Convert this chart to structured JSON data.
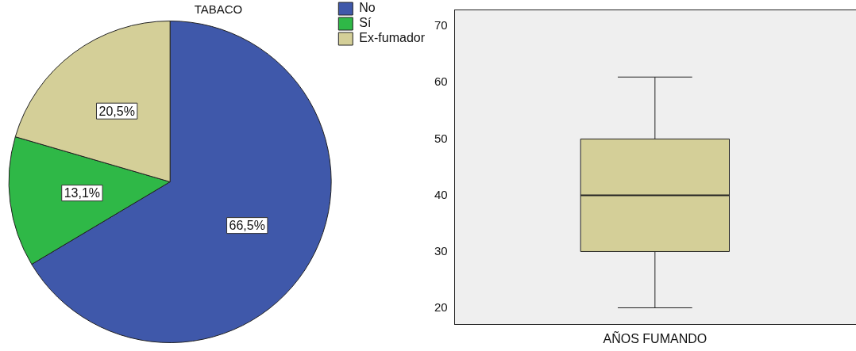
{
  "chart_data": [
    {
      "type": "pie",
      "title": "TABACO",
      "categories": [
        "No",
        "Sí",
        "Ex-fumador"
      ],
      "values": [
        66.5,
        13.1,
        20.5
      ],
      "colors": [
        "#3f58aa",
        "#2fb847",
        "#d4cf98"
      ],
      "value_labels": [
        "66,5%",
        "13,1%",
        "20,5%"
      ],
      "legend": "top right"
    },
    {
      "type": "box",
      "categories": [
        "AÑOS FUMANDO"
      ],
      "boxes": [
        {
          "low": 20,
          "q1": 30,
          "median": 40,
          "q3": 50,
          "high": 61
        }
      ],
      "color": "#d4cf98",
      "ylim": [
        17,
        73
      ],
      "yticks": [
        20,
        30,
        40,
        50,
        60,
        70
      ],
      "grid": false,
      "legend": false
    }
  ]
}
